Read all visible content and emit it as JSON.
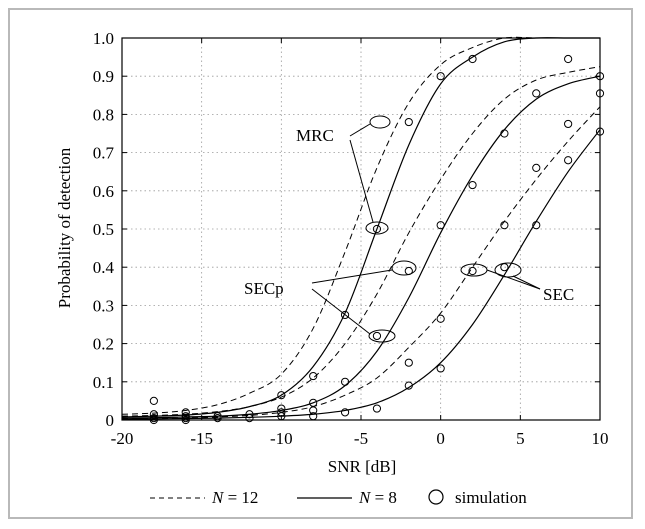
{
  "chart_data": {
    "type": "line",
    "xlabel": "SNR [dB]",
    "ylabel": "Probability of detection",
    "xlim": [
      -20,
      10
    ],
    "ylim": [
      0,
      1.0
    ],
    "xticks": [
      -20,
      -15,
      -10,
      -5,
      0,
      5,
      10
    ],
    "yticks": [
      0,
      0.1,
      0.2,
      0.3,
      0.4,
      0.5,
      0.6,
      0.7,
      0.8,
      0.9,
      1.0
    ],
    "grid": true,
    "legend_position": "bottom",
    "legend": [
      {
        "style": "dashed",
        "label_prefix": "N",
        "label_suffix": " = 12"
      },
      {
        "style": "solid",
        "label_prefix": "N",
        "label_suffix": " = 8"
      },
      {
        "style": "circle",
        "label": "simulation"
      }
    ],
    "annotations": [
      "MRC",
      "SECp",
      "SEC"
    ],
    "series": [
      {
        "style": "dashed",
        "x": [
          -20,
          -18,
          -16,
          -14,
          -12,
          -10,
          -8,
          -6,
          -4,
          -2,
          0,
          2,
          4,
          6,
          8,
          10
        ],
        "y": [
          0.015,
          0.018,
          0.025,
          0.04,
          0.07,
          0.12,
          0.24,
          0.44,
          0.66,
          0.83,
          0.93,
          0.975,
          1.0,
          1.0,
          1.0,
          1.0
        ]
      },
      {
        "style": "solid",
        "x": [
          -20,
          -18,
          -16,
          -14,
          -12,
          -10,
          -8,
          -6,
          -4,
          -2,
          0,
          2,
          4,
          6,
          8,
          10
        ],
        "y": [
          0.008,
          0.01,
          0.013,
          0.02,
          0.035,
          0.065,
          0.14,
          0.28,
          0.5,
          0.72,
          0.88,
          0.95,
          0.99,
          1.0,
          1.0,
          1.0
        ]
      },
      {
        "style": "dashed",
        "x": [
          -20,
          -18,
          -16,
          -14,
          -12,
          -10,
          -8,
          -6,
          -4,
          -2,
          0,
          2,
          4,
          6,
          8,
          10
        ],
        "y": [
          0.01,
          0.012,
          0.015,
          0.022,
          0.035,
          0.06,
          0.11,
          0.2,
          0.33,
          0.49,
          0.63,
          0.75,
          0.84,
          0.89,
          0.91,
          0.925
        ]
      },
      {
        "style": "solid",
        "x": [
          -20,
          -18,
          -16,
          -14,
          -12,
          -10,
          -8,
          -6,
          -4,
          -2,
          0,
          2,
          4,
          6,
          8,
          10
        ],
        "y": [
          0.005,
          0.006,
          0.008,
          0.01,
          0.015,
          0.025,
          0.045,
          0.09,
          0.18,
          0.32,
          0.49,
          0.64,
          0.76,
          0.84,
          0.88,
          0.9
        ]
      },
      {
        "style": "dashed",
        "x": [
          -20,
          -18,
          -16,
          -14,
          -12,
          -10,
          -8,
          -6,
          -4,
          -2,
          0,
          2,
          4,
          6,
          8,
          10
        ],
        "y": [
          0.003,
          0.004,
          0.005,
          0.008,
          0.012,
          0.02,
          0.035,
          0.065,
          0.11,
          0.19,
          0.28,
          0.4,
          0.52,
          0.63,
          0.73,
          0.82
        ]
      },
      {
        "style": "solid",
        "x": [
          -20,
          -18,
          -16,
          -14,
          -12,
          -10,
          -8,
          -6,
          -4,
          -2,
          0,
          2,
          4,
          6,
          8,
          10
        ],
        "y": [
          0.002,
          0.003,
          0.004,
          0.005,
          0.007,
          0.01,
          0.015,
          0.025,
          0.045,
          0.085,
          0.15,
          0.25,
          0.38,
          0.52,
          0.65,
          0.76
        ]
      }
    ],
    "simulation": {
      "x": [
        -18,
        -18,
        -18,
        -18,
        -16,
        -16,
        -16,
        -16,
        -14,
        -14,
        -12,
        -12,
        -10,
        -10,
        -10,
        -10,
        -8,
        -8,
        -8,
        -8,
        -6,
        -6,
        -6,
        -4,
        -4,
        -4,
        -2,
        -2,
        -2,
        -2,
        0,
        0,
        0,
        0,
        2,
        2,
        2,
        4,
        4,
        4,
        6,
        6,
        6,
        8,
        8,
        8,
        10,
        10,
        10
      ],
      "y": [
        0.05,
        0.015,
        0.005,
        0.0,
        0.02,
        0.005,
        0.0,
        0.01,
        0.01,
        0.005,
        0.015,
        0.005,
        0.065,
        0.03,
        0.02,
        0.01,
        0.115,
        0.045,
        0.025,
        0.01,
        0.275,
        0.1,
        0.02,
        0.5,
        0.22,
        0.03,
        0.78,
        0.39,
        0.15,
        0.09,
        0.9,
        0.51,
        0.265,
        0.135,
        0.945,
        0.615,
        0.39,
        0.75,
        0.51,
        0.4,
        0.855,
        0.66,
        0.51,
        0.945,
        0.775,
        0.68,
        0.9,
        0.855,
        0.755
      ]
    }
  }
}
